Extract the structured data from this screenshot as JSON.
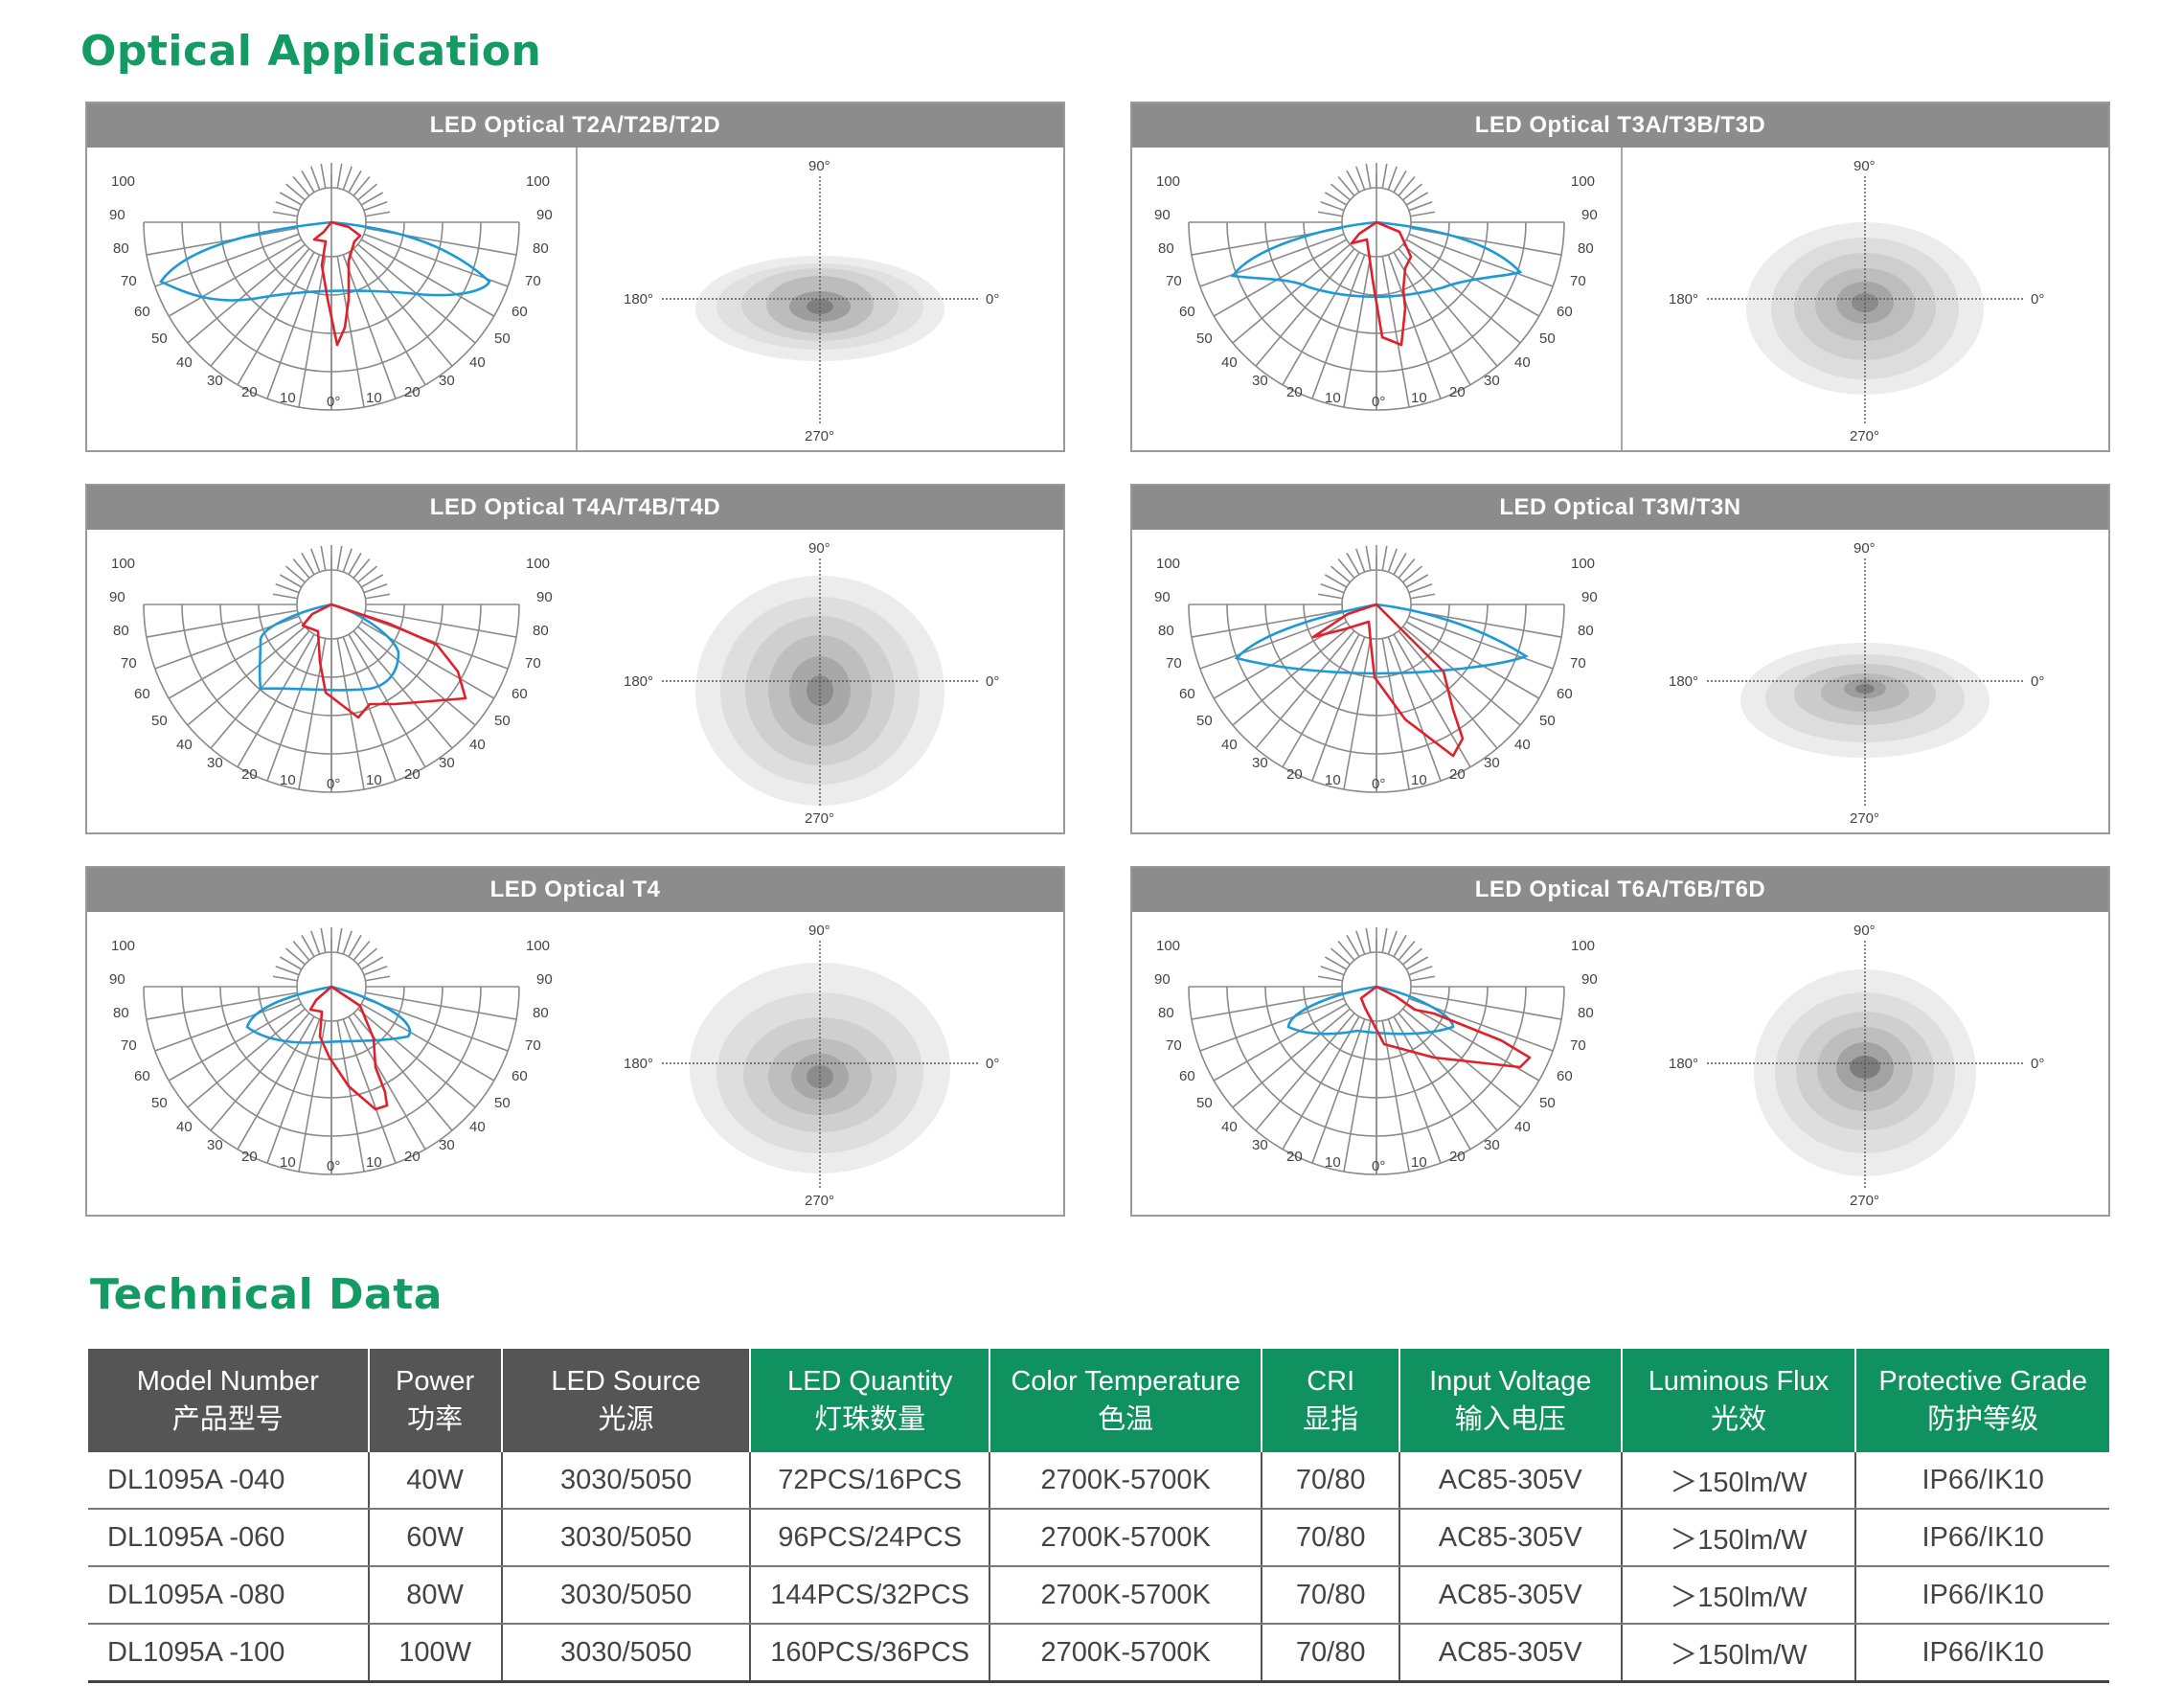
{
  "optical_title": "Optical Application",
  "technical_title": "Technical Data",
  "panels": [
    {
      "title": "LED Optical T2A/T2B/T2D"
    },
    {
      "title": "LED Optical T3A/T3B/T3D"
    },
    {
      "title": "LED Optical T4A/T4B/T4D"
    },
    {
      "title": "LED Optical T3M/T3N"
    },
    {
      "title": "LED Optical T4"
    },
    {
      "title": "LED Optical T6A/T6B/T6D"
    }
  ],
  "polar_labels": [
    "100",
    "90",
    "80",
    "70",
    "60",
    "50",
    "40",
    "30",
    "20",
    "10",
    "0°"
  ],
  "iso_labels": {
    "top": "90°",
    "left": "180°",
    "right": "0°",
    "bottom": "270°"
  },
  "colors": {
    "brand_green": "#149a63",
    "header_gray": "#8c8c8c",
    "curve_red": "#e0202a",
    "curve_blue": "#1a9ad6"
  },
  "table": {
    "headers": [
      {
        "en": "Model Number",
        "cn": "产品型号",
        "style": "dark"
      },
      {
        "en": "Power",
        "cn": "功率",
        "style": "dark"
      },
      {
        "en": "LED Source",
        "cn": "光源",
        "style": "dark"
      },
      {
        "en": "LED Quantity",
        "cn": "灯珠数量",
        "style": "green"
      },
      {
        "en": "Color Temperature",
        "cn": "色温",
        "style": "green"
      },
      {
        "en": "CRI",
        "cn": "显指",
        "style": "green"
      },
      {
        "en": "Input Voltage",
        "cn": "输入电压",
        "style": "green"
      },
      {
        "en": "Luminous Flux",
        "cn": "光效",
        "style": "green"
      },
      {
        "en": "Protective Grade",
        "cn": "防护等级",
        "style": "green"
      }
    ],
    "rows": [
      [
        "DL1095A -040",
        "40W",
        "3030/5050",
        "72PCS/16PCS",
        "2700K-5700K",
        "70/80",
        "AC85-305V",
        "＞150lm/W",
        "IP66/IK10"
      ],
      [
        "DL1095A -060",
        "60W",
        "3030/5050",
        "96PCS/24PCS",
        "2700K-5700K",
        "70/80",
        "AC85-305V",
        "＞150lm/W",
        "IP66/IK10"
      ],
      [
        "DL1095A -080",
        "80W",
        "3030/5050",
        "144PCS/32PCS",
        "2700K-5700K",
        "70/80",
        "AC85-305V",
        "＞150lm/W",
        "IP66/IK10"
      ],
      [
        "DL1095A -100",
        "100W",
        "3030/5050",
        "160PCS/36PCS",
        "2700K-5700K",
        "70/80",
        "AC85-305V",
        "＞150lm/W",
        "IP66/IK10"
      ]
    ]
  }
}
